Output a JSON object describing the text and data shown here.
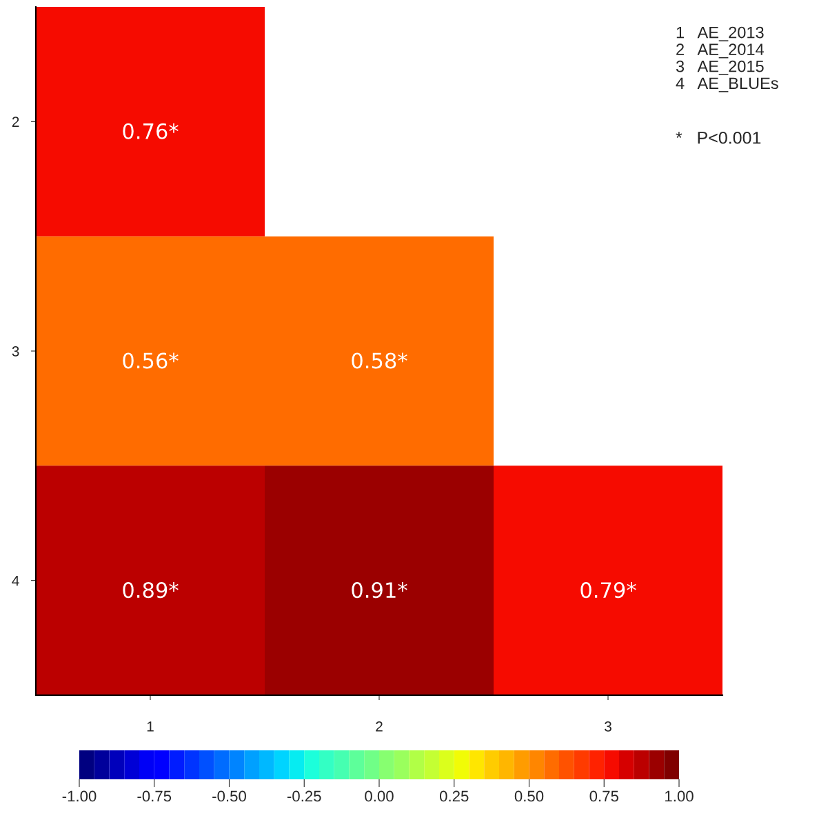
{
  "chart_data": {
    "type": "heatmap",
    "categories": [
      "1",
      "2",
      "3"
    ],
    "y_categories": [
      "2",
      "3",
      "4"
    ],
    "cells": [
      [
        0.76,
        null,
        null
      ],
      [
        0.56,
        0.58,
        null
      ],
      [
        0.89,
        0.91,
        0.79
      ]
    ],
    "cell_labels": [
      [
        "0.76*",
        null,
        null
      ],
      [
        "0.56*",
        "0.58*",
        null
      ],
      [
        "0.89*",
        "0.91*",
        "0.79*"
      ]
    ],
    "clim": [
      -1,
      1
    ],
    "cticks": [
      {
        "value": -1,
        "label": "-1.00"
      },
      {
        "value": -0.75,
        "label": "-0.75"
      },
      {
        "value": -0.5,
        "label": "-0.50"
      },
      {
        "value": -0.25,
        "label": "-0.25"
      },
      {
        "value": 0,
        "label": "0.00"
      },
      {
        "value": 0.25,
        "label": "0.25"
      },
      {
        "value": 0.5,
        "label": "0.50"
      },
      {
        "value": 0.75,
        "label": "0.75"
      },
      {
        "value": 1,
        "label": "1.00"
      }
    ],
    "annotations": [
      "1   AE_2013\n2   AE_2014\n3   AE_2015\n4   AE_BLUEs",
      "*   P<0.001"
    ],
    "grid": false,
    "legend": false
  }
}
